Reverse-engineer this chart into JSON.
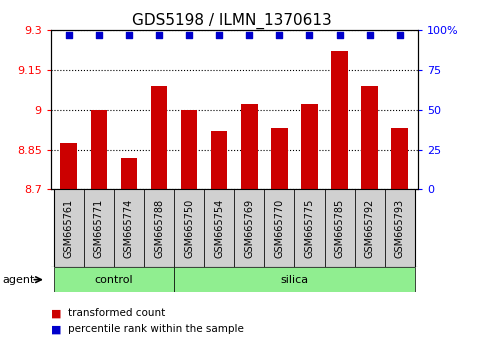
{
  "title": "GDS5198 / ILMN_1370613",
  "samples": [
    "GSM665761",
    "GSM665771",
    "GSM665774",
    "GSM665788",
    "GSM665750",
    "GSM665754",
    "GSM665769",
    "GSM665770",
    "GSM665775",
    "GSM665785",
    "GSM665792",
    "GSM665793"
  ],
  "red_values": [
    8.875,
    9.0,
    8.82,
    9.09,
    9.0,
    8.92,
    9.02,
    8.93,
    9.02,
    9.22,
    9.09,
    8.93
  ],
  "blue_values": [
    97,
    97,
    97,
    97,
    97,
    97,
    97,
    97,
    97,
    97,
    97,
    97
  ],
  "groups": [
    {
      "label": "control",
      "start": 0,
      "end": 4
    },
    {
      "label": "silica",
      "start": 4,
      "end": 12
    }
  ],
  "ylim_left": [
    8.7,
    9.3
  ],
  "ylim_right": [
    0,
    100
  ],
  "yticks_left": [
    8.7,
    8.85,
    9.0,
    9.15,
    9.3
  ],
  "yticks_right": [
    0,
    25,
    50,
    75,
    100
  ],
  "ytick_labels_left": [
    "8.7",
    "8.85",
    "9",
    "9.15",
    "9.3"
  ],
  "ytick_labels_right": [
    "0",
    "25",
    "50",
    "75",
    "100%"
  ],
  "bar_color": "#cc0000",
  "dot_color": "#0000cc",
  "bar_bottom": 8.7,
  "green_color": "#90ee90",
  "gray_color": "#d0d0d0",
  "agent_label": "agent",
  "legend_items": [
    {
      "color": "#cc0000",
      "label": "transformed count"
    },
    {
      "color": "#0000cc",
      "label": "percentile rank within the sample"
    }
  ],
  "title_fontsize": 11,
  "tick_fontsize": 8,
  "label_fontsize": 8,
  "sample_fontsize": 7
}
